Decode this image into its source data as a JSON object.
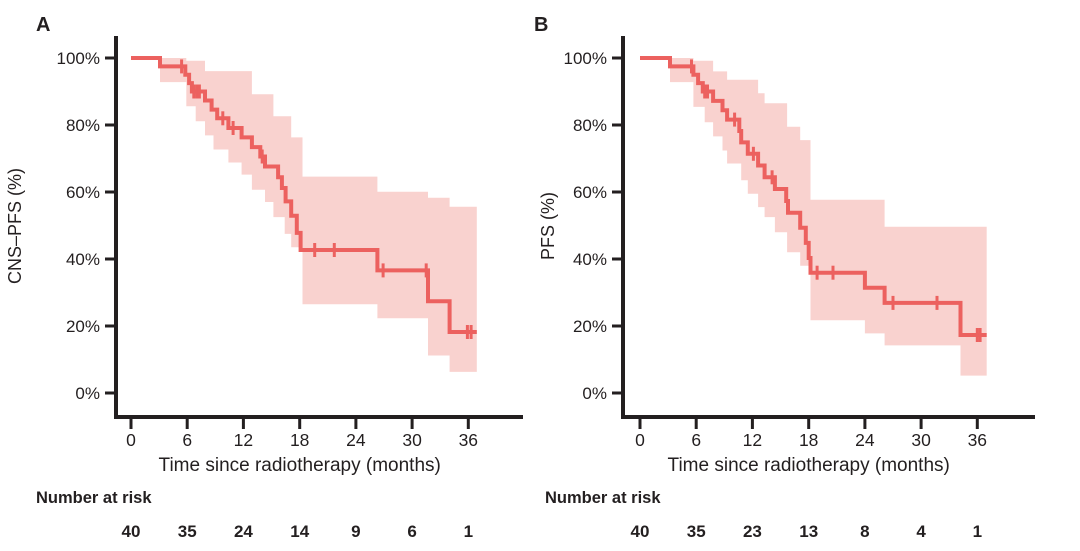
{
  "figure": {
    "description": "Kaplan-Meier survival curves with 95% confidence bands",
    "colors": {
      "line": "#ec615f",
      "band": "#f9d2cf",
      "axis": "#231f20",
      "text": "#231f20",
      "background": "#ffffff"
    }
  },
  "chart_data": [
    {
      "type": "line",
      "subtype": "kaplan-meier-step",
      "panel_label": "A",
      "ylabel": "CNS–PFS (%)",
      "xlabel": "Time since radiotherapy (months)",
      "x_ticks": [
        0,
        6,
        12,
        18,
        24,
        30,
        36
      ],
      "y_tick_pcts": [
        100,
        80,
        60,
        40,
        20,
        0
      ],
      "y_tick_labels": [
        "100%",
        "80%",
        "60%",
        "40%",
        "20%",
        "0%"
      ],
      "xlim": [
        0,
        42
      ],
      "ylim": [
        0,
        100
      ],
      "grid": false,
      "legend": "none",
      "end_t": 36.9,
      "steps": [
        [
          0,
          100
        ],
        [
          3.1,
          97.5
        ],
        [
          5.8,
          95.0
        ],
        [
          6.2,
          92.5
        ],
        [
          6.5,
          90.0
        ],
        [
          7.9,
          87.3
        ],
        [
          8.6,
          84.6
        ],
        [
          9.2,
          82.0
        ],
        [
          10.4,
          79.1
        ],
        [
          11.8,
          76.3
        ],
        [
          12.9,
          73.4
        ],
        [
          13.8,
          70.6
        ],
        [
          14.3,
          67.6
        ],
        [
          15.7,
          64.4
        ],
        [
          16.1,
          61.2
        ],
        [
          16.5,
          57.2
        ],
        [
          17.1,
          52.9
        ],
        [
          17.7,
          47.8
        ],
        [
          18.1,
          42.7
        ],
        [
          26.3,
          36.6
        ],
        [
          31.7,
          27.4
        ],
        [
          34.0,
          18.2
        ]
      ],
      "censors": [
        [
          5.4,
          97.5
        ],
        [
          6.7,
          90.0
        ],
        [
          7.0,
          90.0
        ],
        [
          7.3,
          90.0
        ],
        [
          9.8,
          82.0
        ],
        [
          10.9,
          79.1
        ],
        [
          14.0,
          70.6
        ],
        [
          19.6,
          42.7
        ],
        [
          21.7,
          42.7
        ],
        [
          26.9,
          36.6
        ],
        [
          31.5,
          36.6
        ],
        [
          35.9,
          18.2
        ],
        [
          36.3,
          18.2
        ]
      ],
      "band": [
        [
          3.1,
          92.8,
          100
        ],
        [
          5.9,
          85.6,
          99.2
        ],
        [
          6.9,
          81.1,
          99.2
        ],
        [
          7.9,
          76.9,
          96.1
        ],
        [
          8.8,
          72.7,
          96.1
        ],
        [
          10.4,
          68.8,
          96.1
        ],
        [
          11.8,
          65.2,
          96.1
        ],
        [
          12.9,
          60.7,
          89.2
        ],
        [
          14.3,
          57.0,
          89.2
        ],
        [
          15.2,
          52.5,
          82.6
        ],
        [
          16.4,
          47.5,
          82.6
        ],
        [
          17.1,
          43.5,
          76.3
        ],
        [
          18.3,
          26.5,
          64.6
        ],
        [
          26.3,
          22.3,
          60.1
        ],
        [
          31.7,
          11.2,
          58.3
        ],
        [
          34.0,
          6.3,
          55.6
        ]
      ],
      "risk_table": {
        "label": "Number at risk",
        "times": [
          0,
          6,
          12,
          18,
          24,
          30,
          36
        ],
        "counts": [
          40,
          35,
          24,
          14,
          9,
          6,
          1
        ]
      }
    },
    {
      "type": "line",
      "subtype": "kaplan-meier-step",
      "panel_label": "B",
      "ylabel": "PFS (%)",
      "xlabel": "Time since radiotherapy (months)",
      "x_ticks": [
        0,
        6,
        12,
        18,
        24,
        30,
        36
      ],
      "y_tick_pcts": [
        100,
        80,
        60,
        40,
        20,
        0
      ],
      "y_tick_labels": [
        "100%",
        "80%",
        "60%",
        "40%",
        "20%",
        "0%"
      ],
      "xlim": [
        0,
        42
      ],
      "ylim": [
        0,
        100
      ],
      "grid": false,
      "legend": "none",
      "end_t": 37.0,
      "steps": [
        [
          0,
          100
        ],
        [
          3.2,
          97.5
        ],
        [
          5.7,
          95.0
        ],
        [
          6.2,
          92.5
        ],
        [
          6.7,
          90.0
        ],
        [
          7.8,
          87.2
        ],
        [
          8.8,
          84.4
        ],
        [
          9.3,
          81.6
        ],
        [
          10.6,
          78.2
        ],
        [
          10.8,
          74.8
        ],
        [
          11.5,
          71.4
        ],
        [
          12.6,
          67.9
        ],
        [
          13.3,
          64.4
        ],
        [
          14.4,
          60.9
        ],
        [
          15.6,
          57.3
        ],
        [
          15.8,
          53.8
        ],
        [
          17.1,
          49.3
        ],
        [
          17.7,
          44.8
        ],
        [
          18.0,
          40.3
        ],
        [
          18.2,
          35.9
        ],
        [
          24.0,
          31.4
        ],
        [
          26.1,
          26.9
        ],
        [
          34.2,
          17.3
        ]
      ],
      "censors": [
        [
          5.5,
          97.5
        ],
        [
          6.9,
          90.0
        ],
        [
          7.2,
          90.0
        ],
        [
          10.1,
          81.6
        ],
        [
          12.1,
          71.4
        ],
        [
          14.1,
          64.4
        ],
        [
          18.9,
          35.9
        ],
        [
          20.6,
          35.9
        ],
        [
          27.0,
          26.9
        ],
        [
          31.7,
          26.9
        ],
        [
          36.0,
          17.3
        ],
        [
          36.3,
          17.3
        ]
      ],
      "band": [
        [
          3.2,
          92.8,
          100
        ],
        [
          5.7,
          85.4,
          99.2
        ],
        [
          6.9,
          80.8,
          99.2
        ],
        [
          7.8,
          76.6,
          96.0
        ],
        [
          8.8,
          72.4,
          96.0
        ],
        [
          9.3,
          68.5,
          93.5
        ],
        [
          10.8,
          63.5,
          93.5
        ],
        [
          11.5,
          59.5,
          93.5
        ],
        [
          12.6,
          55.5,
          89.5
        ],
        [
          13.3,
          52.5,
          86.5
        ],
        [
          14.4,
          48.0,
          86.5
        ],
        [
          15.7,
          42.0,
          79.5
        ],
        [
          17.1,
          38.0,
          75.5
        ],
        [
          18.2,
          21.7,
          57.7
        ],
        [
          24.0,
          17.8,
          57.7
        ],
        [
          26.1,
          14.2,
          49.6
        ],
        [
          34.2,
          5.2,
          49.6
        ]
      ],
      "risk_table": {
        "label": "Number at risk",
        "times": [
          0,
          6,
          12,
          18,
          24,
          30,
          36
        ],
        "counts": [
          40,
          35,
          23,
          13,
          8,
          4,
          1
        ]
      }
    }
  ]
}
